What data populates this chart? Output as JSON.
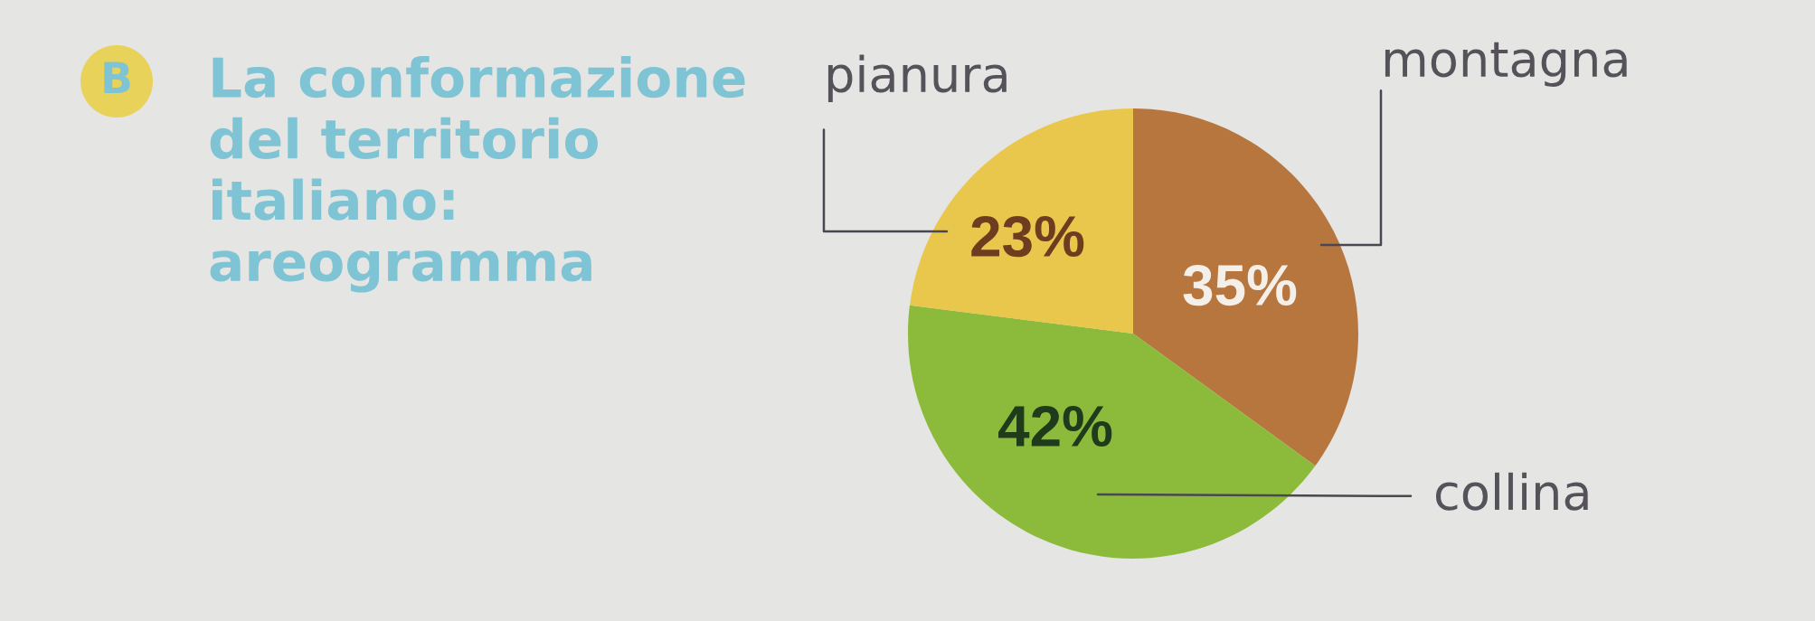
{
  "chart_data": {
    "type": "pie",
    "title": "La conformazione del territorio italiano: areogramma",
    "annotations": [
      "B"
    ],
    "categories": [
      "montagna",
      "collina",
      "pianura"
    ],
    "values": [
      35,
      42,
      23
    ],
    "colors": [
      "#b8763f",
      "#8cbb3c",
      "#e9c74c"
    ],
    "value_labels": [
      "35%",
      "42%",
      "23%"
    ]
  }
}
